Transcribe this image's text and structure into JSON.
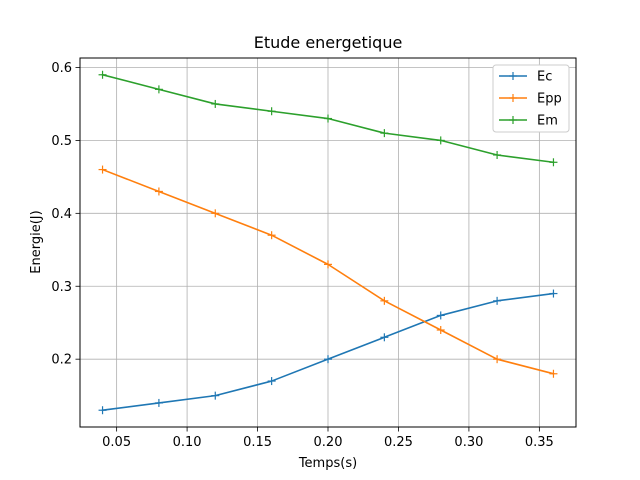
{
  "chart_data": {
    "type": "line",
    "title": "Etude energetique",
    "xlabel": "Temps(s)",
    "ylabel": "Energie(J)",
    "x": [
      0.04,
      0.08,
      0.12,
      0.16,
      0.2,
      0.24,
      0.28,
      0.32,
      0.36
    ],
    "xlim": [
      0.024,
      0.376
    ],
    "ylim": [
      0.107,
      0.613
    ],
    "xticks": [
      0.05,
      0.1,
      0.15,
      0.2,
      0.25,
      0.3,
      0.35
    ],
    "xtick_labels": [
      "0.05",
      "0.10",
      "0.15",
      "0.20",
      "0.25",
      "0.30",
      "0.35"
    ],
    "yticks": [
      0.2,
      0.3,
      0.4,
      0.5,
      0.6
    ],
    "ytick_labels": [
      "0.2",
      "0.3",
      "0.4",
      "0.5",
      "0.6"
    ],
    "grid": true,
    "legend_position": "top-right",
    "marker": "+",
    "series": [
      {
        "name": "Ec",
        "color": "#1f77b4",
        "values": [
          0.13,
          0.14,
          0.15,
          0.17,
          0.2,
          0.23,
          0.26,
          0.28,
          0.29
        ]
      },
      {
        "name": "Epp",
        "color": "#ff7f0e",
        "values": [
          0.46,
          0.43,
          0.4,
          0.37,
          0.33,
          0.28,
          0.24,
          0.2,
          0.18
        ]
      },
      {
        "name": "Em",
        "color": "#2ca02c",
        "values": [
          0.59,
          0.57,
          0.55,
          0.54,
          0.53,
          0.51,
          0.5,
          0.48,
          0.47
        ]
      }
    ]
  }
}
